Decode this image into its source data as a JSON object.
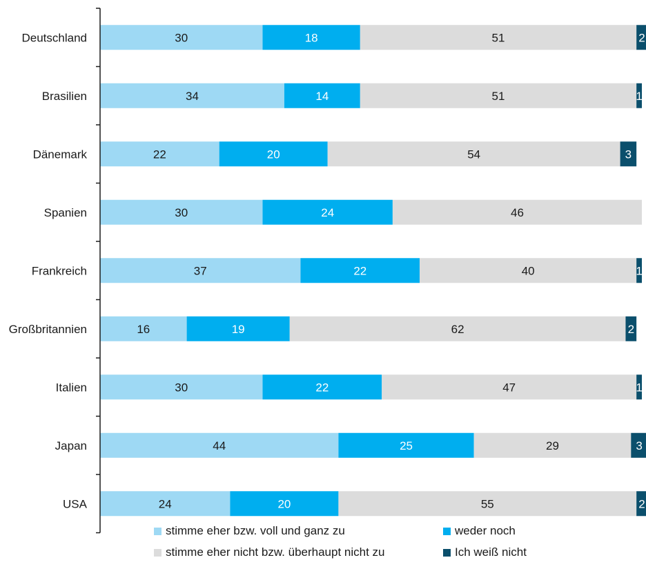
{
  "chart_data": {
    "type": "bar",
    "orientation": "horizontal",
    "stacked": true,
    "categories": [
      "Deutschland",
      "Brasilien",
      "Dänemark",
      "Spanien",
      "Frankreich",
      "Großbritannien",
      "Italien",
      "Japan",
      "USA"
    ],
    "series": [
      {
        "name": "stimme eher bzw. voll und ganz zu",
        "color": "#9ed9f4",
        "label_color": "#1a1a1a",
        "values": [
          30,
          34,
          22,
          30,
          37,
          16,
          30,
          44,
          24
        ]
      },
      {
        "name": "weder noch",
        "color": "#00aeef",
        "label_color": "#ffffff",
        "values": [
          18,
          14,
          20,
          24,
          22,
          19,
          22,
          25,
          20
        ]
      },
      {
        "name": "stimme eher nicht bzw. überhaupt nicht zu",
        "color": "#dcdcdc",
        "label_color": "#1a1a1a",
        "values": [
          51,
          51,
          54,
          46,
          40,
          62,
          47,
          29,
          55
        ]
      },
      {
        "name": "Ich weiß nicht",
        "color": "#0b4f6c",
        "label_color": "#ffffff",
        "values": [
          2,
          1,
          3,
          0,
          1,
          2,
          1,
          3,
          2
        ]
      }
    ],
    "xlim": [
      0,
      100
    ],
    "grid": false,
    "legend_position": "bottom"
  }
}
